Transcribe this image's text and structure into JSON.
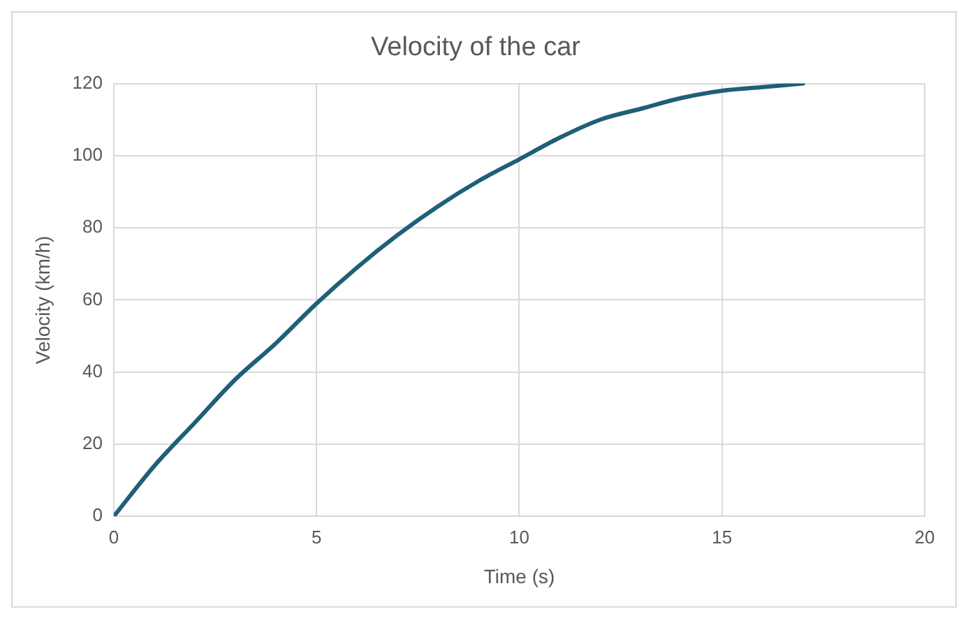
{
  "chart_data": {
    "type": "line",
    "title": "Velocity of the car",
    "xlabel": "Time (s)",
    "ylabel": "Velocity (km/h)",
    "x": [
      0,
      1,
      2,
      3,
      4,
      5,
      6,
      7,
      8,
      9,
      10,
      11,
      12,
      13,
      14,
      15,
      16,
      17
    ],
    "series": [
      {
        "color": "#1f5f78",
        "values": [
          0,
          14,
          26,
          38,
          48,
          59,
          69,
          78,
          86,
          93,
          99,
          105,
          110,
          113,
          116,
          118,
          119,
          120
        ]
      }
    ],
    "xlim": [
      0,
      20
    ],
    "xticks": [
      0,
      5,
      10,
      15,
      20
    ],
    "ylim": [
      0,
      120
    ],
    "yticks": [
      0,
      20,
      40,
      60,
      80,
      100,
      120
    ],
    "grid": true,
    "legend": false,
    "marker": "none",
    "line_style": "solid"
  }
}
